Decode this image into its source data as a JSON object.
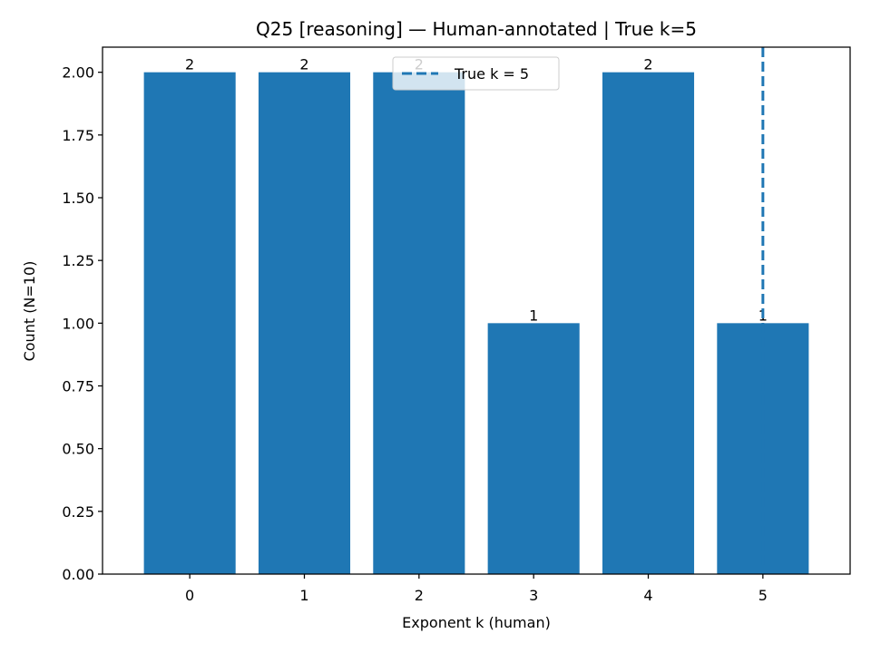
{
  "chart_data": {
    "type": "bar",
    "title": "Q25 [reasoning] — Human-annotated | True k=5",
    "xlabel": "Exponent k (human)",
    "ylabel": "Count (N=10)",
    "categories": [
      "0",
      "1",
      "2",
      "3",
      "4",
      "5"
    ],
    "values": [
      2,
      2,
      2,
      1,
      2,
      1
    ],
    "data_labels": [
      "2",
      "2",
      "2",
      "1",
      "2",
      "1"
    ],
    "ylim": [
      0,
      2.1
    ],
    "yticks": [
      0,
      0.25,
      0.5,
      0.75,
      1.0,
      1.25,
      1.5,
      1.75,
      2.0
    ],
    "ytick_labels": [
      "0.00",
      "0.25",
      "0.50",
      "0.75",
      "1.00",
      "1.25",
      "1.50",
      "1.75",
      "2.00"
    ],
    "reference_line": {
      "x": 5,
      "style": "dashed",
      "label": "True k = 5"
    },
    "legend": {
      "placement": "upper center",
      "entries": [
        "True k = 5"
      ]
    },
    "grid": false,
    "colors": {
      "bar": "#1f77b4",
      "reference_line": "#1f77b4"
    }
  }
}
